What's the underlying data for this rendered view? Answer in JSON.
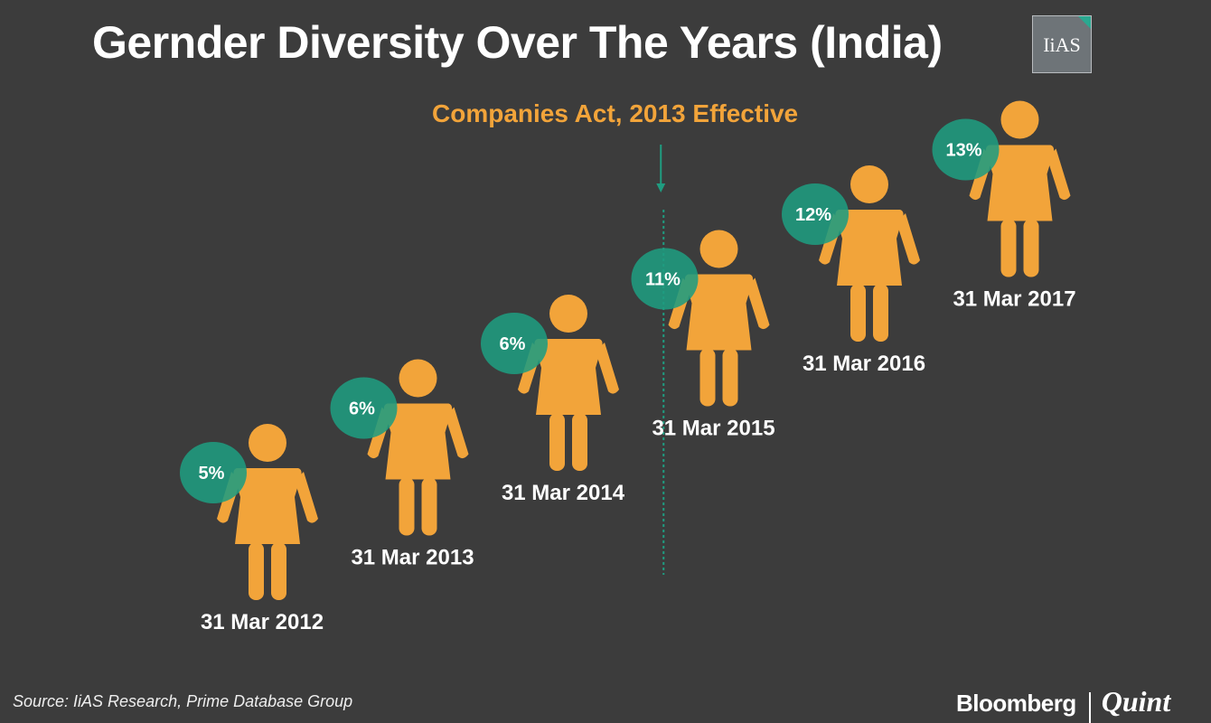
{
  "title": "Gernder Diversity Over The Years (India)",
  "logo_text": "IiAS",
  "source": "Source: IiAS Research, Prime Database Group",
  "brand": {
    "primary": "Bloomberg",
    "secondary": "Quint"
  },
  "colors": {
    "background": "#3c3c3c",
    "figure": "#f2a43a",
    "bubble": "#1f9c80",
    "text": "#ffffff"
  },
  "chart_data": {
    "type": "pictograph",
    "unit": "%",
    "categories": [
      "31 Mar 2012",
      "31 Mar 2013",
      "31 Mar 2014",
      "31 Mar 2015",
      "31 Mar 2016",
      "31 Mar 2017"
    ],
    "values": [
      5,
      6,
      6,
      11,
      12,
      13
    ],
    "labels": [
      "5%",
      "6%",
      "6%",
      "11%",
      "12%",
      "13%"
    ],
    "annotation": {
      "text": "Companies Act, 2013 Effective",
      "between": [
        "31 Mar 2014",
        "31 Mar 2015"
      ]
    }
  }
}
